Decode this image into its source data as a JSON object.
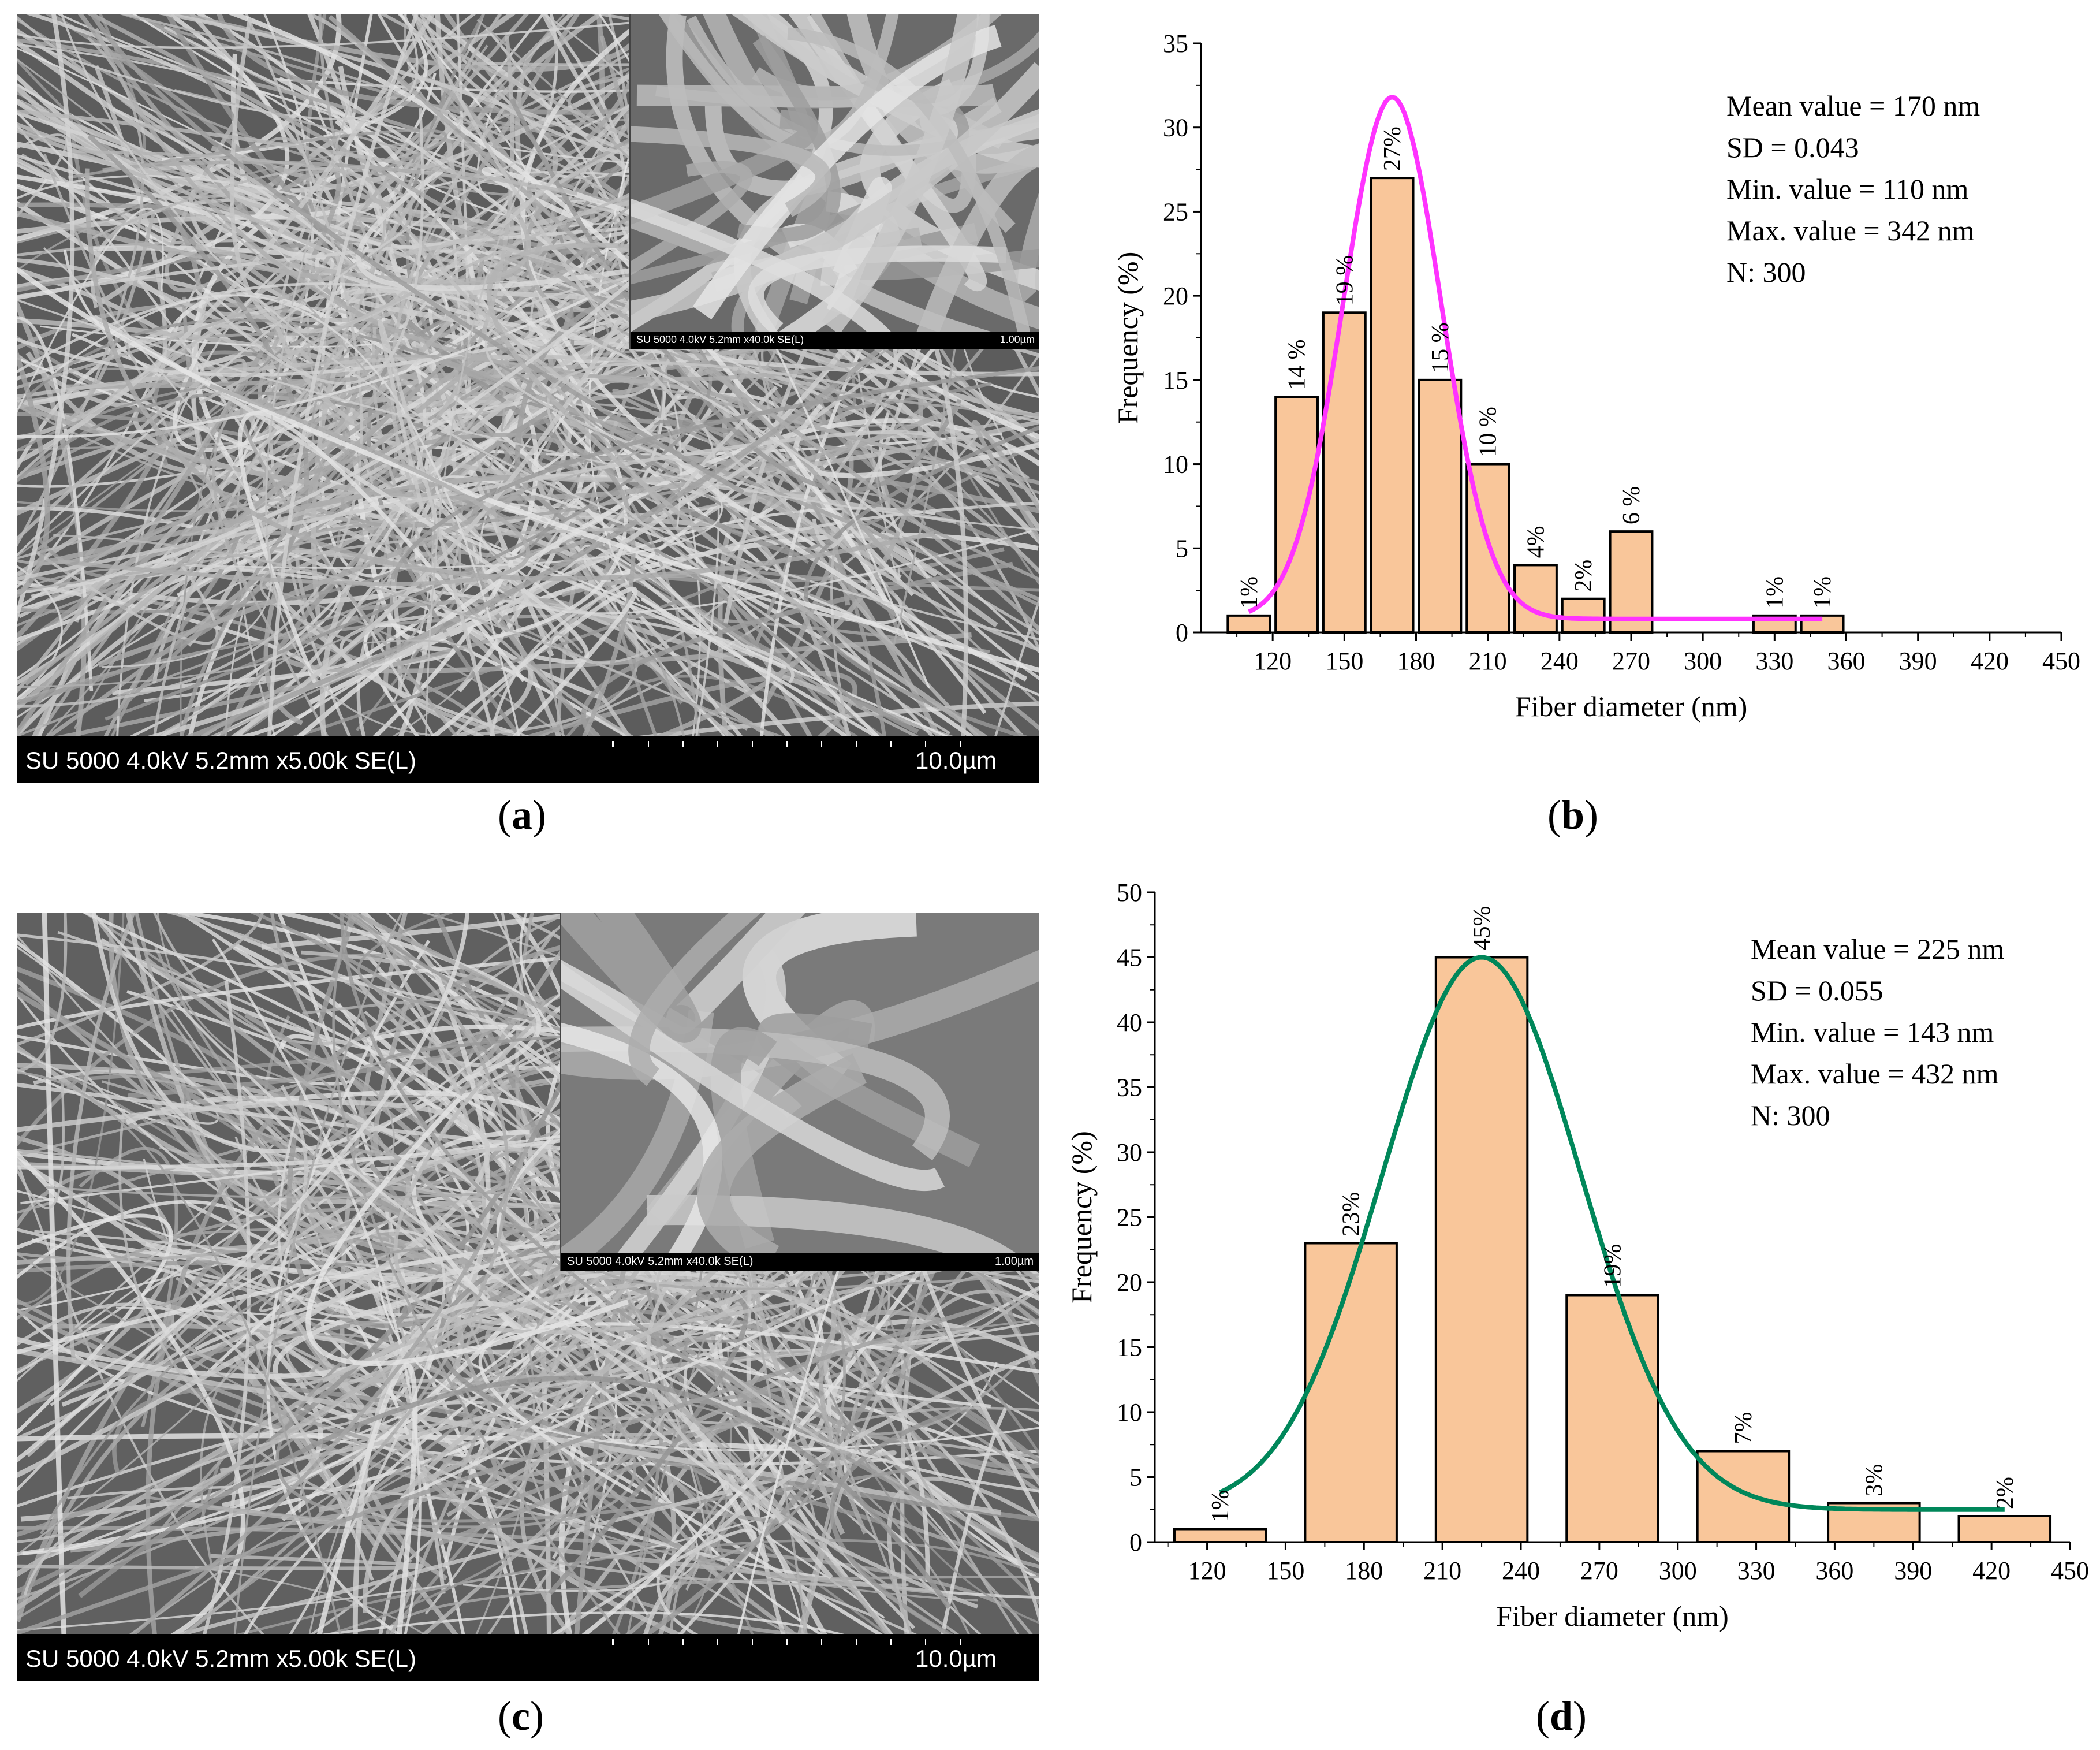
{
  "panels": {
    "a": {
      "label_letter": "a"
    },
    "b": {
      "label_letter": "b"
    },
    "c": {
      "label_letter": "c"
    },
    "d": {
      "label_letter": "d"
    }
  },
  "sem_a": {
    "main_info": "SU 5000 4.0kV 5.2mm x5.00k SE(L)",
    "main_scale": "10.0µm",
    "inset_info": "SU 5000 4.0kV 5.2mm x40.0k SE(L)",
    "inset_scale": "1.00µm"
  },
  "sem_c": {
    "main_info": "SU 5000 4.0kV 5.2mm x5.00k SE(L)",
    "main_scale": "10.0µm",
    "inset_info": "SU 5000 4.0kV 5.2mm x40.0k SE(L)",
    "inset_scale": "1.00µm"
  },
  "colors": {
    "bar_fill": "#f9c69a",
    "fit_b": "#ff33ff",
    "fit_d": "#00875a"
  },
  "chart_data": [
    {
      "type": "bar",
      "id": "b",
      "title": "",
      "xlabel": "Fiber diameter (nm)",
      "ylabel": "Frequency (%)",
      "xlim": [
        90,
        450
      ],
      "ylim": [
        0,
        35
      ],
      "xticks": [
        120,
        150,
        180,
        210,
        240,
        270,
        300,
        330,
        360,
        390,
        420,
        450
      ],
      "yticks": [
        0,
        5,
        10,
        15,
        20,
        25,
        30,
        35
      ],
      "bin_width": 20,
      "bin_centers": [
        110,
        130,
        150,
        170,
        190,
        210,
        230,
        250,
        270,
        330,
        350
      ],
      "values": [
        1,
        14,
        19,
        27,
        15,
        10,
        4,
        2,
        6,
        1,
        1
      ],
      "data_labels": [
        "1%",
        "14 %",
        "19 %",
        "27%",
        "15 %",
        "10 %",
        "4%",
        "2%",
        "6 %",
        "1%",
        "1%"
      ],
      "fit": {
        "type": "gaussian",
        "mean": 170,
        "sigma": 20.5,
        "amplitude": 31,
        "baseline": 0.8,
        "x_range": [
          110,
          350
        ]
      },
      "stats": [
        "Mean value = 170 nm",
        "SD = 0.043",
        "Min. value = 110 nm",
        "Max. value = 342 nm",
        "N: 300"
      ]
    },
    {
      "type": "bar",
      "id": "d",
      "title": "",
      "xlabel": "Fiber diameter (nm)",
      "ylabel": "Frequency (%)",
      "xlim": [
        100,
        450
      ],
      "ylim": [
        0,
        50
      ],
      "xticks": [
        120,
        150,
        180,
        210,
        240,
        270,
        300,
        330,
        360,
        390,
        420,
        450
      ],
      "yticks": [
        0,
        5,
        10,
        15,
        20,
        25,
        30,
        35,
        40,
        45,
        50
      ],
      "bin_width": 40,
      "bin_centers": [
        125,
        175,
        225,
        275,
        325,
        375,
        425
      ],
      "values": [
        1,
        23,
        45,
        19,
        7,
        3,
        2
      ],
      "data_labels": [
        "1%",
        "23%",
        "45%",
        "19%",
        "7%",
        "3%",
        "2%"
      ],
      "fit": {
        "type": "gaussian",
        "mean": 225,
        "sigma": 38,
        "amplitude": 42.5,
        "baseline": 2.5,
        "x_range": [
          125,
          425
        ]
      },
      "stats": [
        "Mean value = 225 nm",
        "SD = 0.055",
        "Min. value = 143 nm",
        "Max. value = 432 nm",
        "N: 300"
      ]
    }
  ]
}
